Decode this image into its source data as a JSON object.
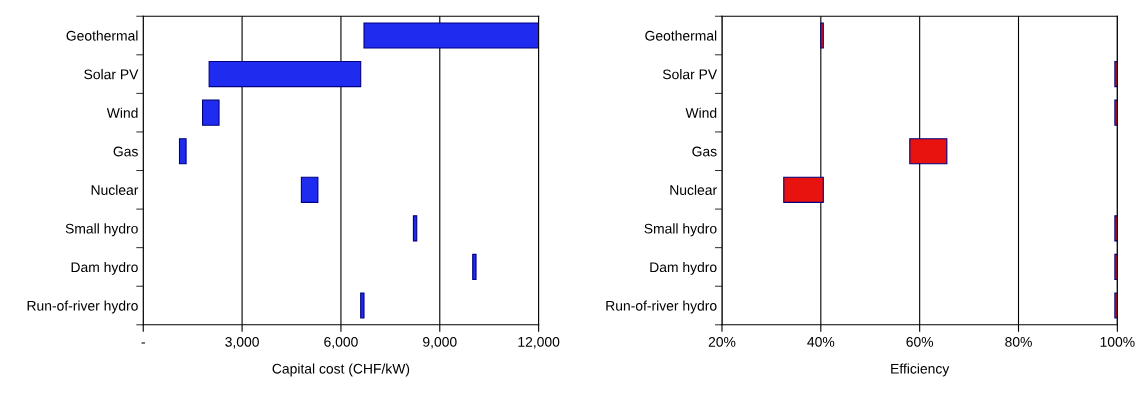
{
  "chart_data": [
    {
      "type": "bar",
      "orientation": "horizontal",
      "categories": [
        "Geothermal",
        "Solar PV",
        "Wind",
        "Gas",
        "Nuclear",
        "Small hydro",
        "Dam hydro",
        "Run-of-river hydro"
      ],
      "base": [
        6700,
        2000,
        1800,
        1100,
        4800,
        8200,
        10000,
        6600
      ],
      "values": [
        5300,
        4600,
        500,
        200,
        500,
        100,
        100,
        100
      ],
      "color": "#1f2cf0",
      "xlabel": "Capital cost (CHF/kW)",
      "xlim": [
        0,
        12000
      ],
      "xticks": [
        {
          "value": 0,
          "label": "-"
        },
        {
          "value": 3000,
          "label": "3,000"
        },
        {
          "value": 6000,
          "label": "6,000"
        },
        {
          "value": 9000,
          "label": "9,000"
        },
        {
          "value": 12000,
          "label": "12,000"
        }
      ],
      "grid": "x"
    },
    {
      "type": "bar",
      "orientation": "horizontal",
      "categories": [
        "Geothermal",
        "Solar PV",
        "Wind",
        "Gas",
        "Nuclear",
        "Small hydro",
        "Dam hydro",
        "Run-of-river hydro"
      ],
      "base": [
        40,
        99.5,
        99.5,
        58,
        32.5,
        99.5,
        99.5,
        99.5
      ],
      "values": [
        0.5,
        0.5,
        0.5,
        7.5,
        8,
        0.5,
        0.5,
        0.5
      ],
      "color": "#e8130f",
      "xlabel": "Efficiency",
      "xlim": [
        20,
        100
      ],
      "xticks": [
        {
          "value": 20,
          "label": "20%"
        },
        {
          "value": 40,
          "label": "40%"
        },
        {
          "value": 60,
          "label": "60%"
        },
        {
          "value": 80,
          "label": "80%"
        },
        {
          "value": 100,
          "label": "100%"
        }
      ],
      "grid": "x"
    }
  ]
}
